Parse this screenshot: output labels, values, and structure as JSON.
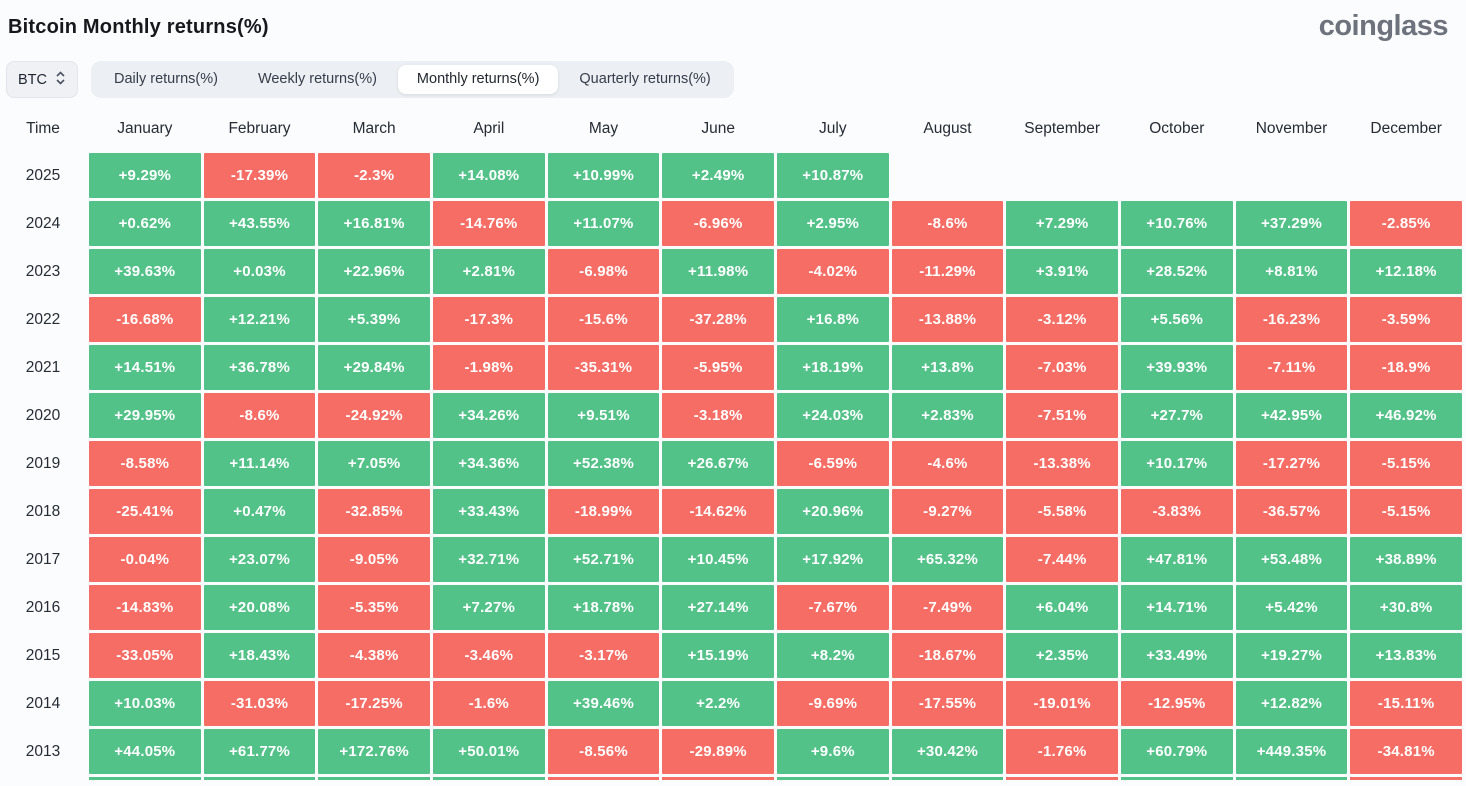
{
  "app": {
    "title": "Bitcoin Monthly returns(%)",
    "brand": "coinglass"
  },
  "controls": {
    "symbol": "BTC",
    "tabs": [
      {
        "label": "Daily returns(%)",
        "active": false
      },
      {
        "label": "Weekly returns(%)",
        "active": false
      },
      {
        "label": "Monthly returns(%)",
        "active": true
      },
      {
        "label": "Quarterly returns(%)",
        "active": false
      }
    ]
  },
  "colors": {
    "positive": "#53c289",
    "negative": "#f56d64"
  },
  "chart_data": {
    "type": "heatmap",
    "title": "Bitcoin Monthly returns(%)",
    "columns": [
      "Time",
      "January",
      "February",
      "March",
      "April",
      "May",
      "June",
      "July",
      "August",
      "September",
      "October",
      "November",
      "December"
    ],
    "rows": [
      {
        "year": "2025",
        "values": [
          "+9.29%",
          "-17.39%",
          "-2.3%",
          "+14.08%",
          "+10.99%",
          "+2.49%",
          "+10.87%",
          null,
          null,
          null,
          null,
          null
        ]
      },
      {
        "year": "2024",
        "values": [
          "+0.62%",
          "+43.55%",
          "+16.81%",
          "-14.76%",
          "+11.07%",
          "-6.96%",
          "+2.95%",
          "-8.6%",
          "+7.29%",
          "+10.76%",
          "+37.29%",
          "-2.85%"
        ]
      },
      {
        "year": "2023",
        "values": [
          "+39.63%",
          "+0.03%",
          "+22.96%",
          "+2.81%",
          "-6.98%",
          "+11.98%",
          "-4.02%",
          "-11.29%",
          "+3.91%",
          "+28.52%",
          "+8.81%",
          "+12.18%"
        ]
      },
      {
        "year": "2022",
        "values": [
          "-16.68%",
          "+12.21%",
          "+5.39%",
          "-17.3%",
          "-15.6%",
          "-37.28%",
          "+16.8%",
          "-13.88%",
          "-3.12%",
          "+5.56%",
          "-16.23%",
          "-3.59%"
        ]
      },
      {
        "year": "2021",
        "values": [
          "+14.51%",
          "+36.78%",
          "+29.84%",
          "-1.98%",
          "-35.31%",
          "-5.95%",
          "+18.19%",
          "+13.8%",
          "-7.03%",
          "+39.93%",
          "-7.11%",
          "-18.9%"
        ]
      },
      {
        "year": "2020",
        "values": [
          "+29.95%",
          "-8.6%",
          "-24.92%",
          "+34.26%",
          "+9.51%",
          "-3.18%",
          "+24.03%",
          "+2.83%",
          "-7.51%",
          "+27.7%",
          "+42.95%",
          "+46.92%"
        ]
      },
      {
        "year": "2019",
        "values": [
          "-8.58%",
          "+11.14%",
          "+7.05%",
          "+34.36%",
          "+52.38%",
          "+26.67%",
          "-6.59%",
          "-4.6%",
          "-13.38%",
          "+10.17%",
          "-17.27%",
          "-5.15%"
        ]
      },
      {
        "year": "2018",
        "values": [
          "-25.41%",
          "+0.47%",
          "-32.85%",
          "+33.43%",
          "-18.99%",
          "-14.62%",
          "+20.96%",
          "-9.27%",
          "-5.58%",
          "-3.83%",
          "-36.57%",
          "-5.15%"
        ]
      },
      {
        "year": "2017",
        "values": [
          "-0.04%",
          "+23.07%",
          "-9.05%",
          "+32.71%",
          "+52.71%",
          "+10.45%",
          "+17.92%",
          "+65.32%",
          "-7.44%",
          "+47.81%",
          "+53.48%",
          "+38.89%"
        ]
      },
      {
        "year": "2016",
        "values": [
          "-14.83%",
          "+20.08%",
          "-5.35%",
          "+7.27%",
          "+18.78%",
          "+27.14%",
          "-7.67%",
          "-7.49%",
          "+6.04%",
          "+14.71%",
          "+5.42%",
          "+30.8%"
        ]
      },
      {
        "year": "2015",
        "values": [
          "-33.05%",
          "+18.43%",
          "-4.38%",
          "-3.46%",
          "-3.17%",
          "+15.19%",
          "+8.2%",
          "-18.67%",
          "+2.35%",
          "+33.49%",
          "+19.27%",
          "+13.83%"
        ]
      },
      {
        "year": "2014",
        "values": [
          "+10.03%",
          "-31.03%",
          "-17.25%",
          "-1.6%",
          "+39.46%",
          "+2.2%",
          "-9.69%",
          "-17.55%",
          "-19.01%",
          "-12.95%",
          "+12.82%",
          "-15.11%"
        ]
      },
      {
        "year": "2013",
        "values": [
          "+44.05%",
          "+61.77%",
          "+172.76%",
          "+50.01%",
          "-8.56%",
          "-29.89%",
          "+9.6%",
          "+30.42%",
          "-1.76%",
          "+60.79%",
          "+449.35%",
          "-34.81%"
        ]
      }
    ],
    "partial_next_row_signs": [
      "pos",
      "pos",
      "pos",
      "pos",
      "neg",
      "neg",
      "pos",
      "pos",
      "neg",
      "pos",
      "pos",
      "neg"
    ]
  }
}
